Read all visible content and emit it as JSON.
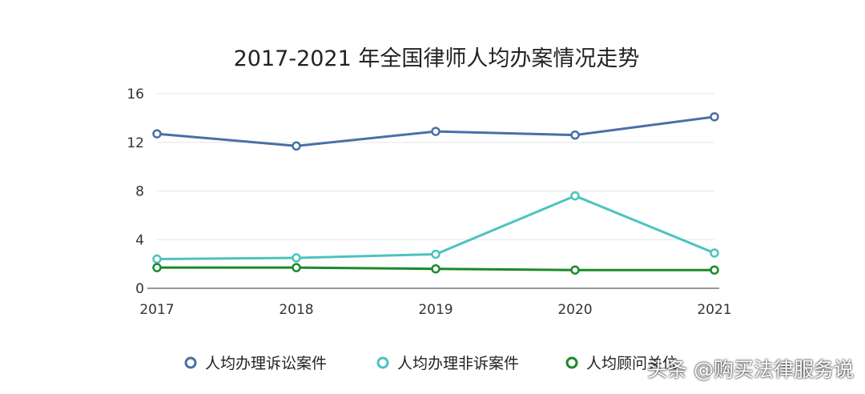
{
  "chart_data": {
    "type": "line",
    "title": "2017-2021 年全国律师人均办案情况走势",
    "categories": [
      "2017",
      "2018",
      "2019",
      "2020",
      "2021"
    ],
    "ylim": [
      0,
      16
    ],
    "yticks": [
      0,
      4,
      8,
      12,
      16
    ],
    "grid": true,
    "legend_position": "bottom",
    "series": [
      {
        "name": "人均办理诉讼案件",
        "color": "#4a6fa5",
        "values": [
          12.7,
          11.7,
          12.9,
          12.6,
          14.1
        ]
      },
      {
        "name": "人均办理非诉案件",
        "color": "#4cc3bf",
        "values": [
          2.4,
          2.5,
          2.8,
          7.6,
          2.9
        ]
      },
      {
        "name": "人均顾问关位",
        "color": "#1a8a2a",
        "values": [
          1.7,
          1.7,
          1.6,
          1.5,
          1.5
        ]
      }
    ]
  },
  "watermark": "头条 @购买法律服务说"
}
